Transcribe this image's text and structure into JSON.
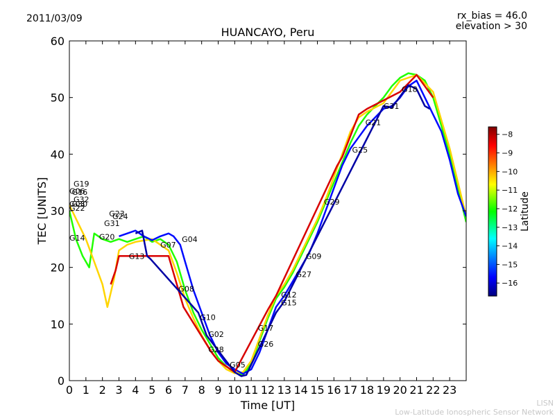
{
  "header": {
    "date": "2011/03/09",
    "rx_bias": "rx_bias = 46.0",
    "elevation": "elevation > 30"
  },
  "watermark": {
    "line1": "LISN",
    "line2": "Low-Latitude Ionospheric Sensor Network"
  },
  "colorbar": {
    "label": "Latitude",
    "ticks": [
      "-8",
      "-9",
      "-10",
      "-11",
      "-12",
      "-13",
      "-14",
      "-15",
      "-16"
    ],
    "range": [
      -16.7,
      -7.6
    ],
    "colormap": [
      "#00007f",
      "#0000ff",
      "#007fff",
      "#00ffff",
      "#00ff00",
      "#7fff00",
      "#ffff00",
      "#ff7f00",
      "#ff0000",
      "#7f0000"
    ]
  },
  "chart_data": {
    "type": "line",
    "title": "HUANCAYO, Peru",
    "xlabel": "Time [UT]",
    "ylabel": "TEC [UNITS]",
    "xlim": [
      0,
      24
    ],
    "ylim": [
      0,
      60
    ],
    "xticks": [
      "0",
      "1",
      "2",
      "3",
      "4",
      "5",
      "6",
      "7",
      "8",
      "9",
      "10",
      "11",
      "12",
      "13",
      "14",
      "15",
      "16",
      "17",
      "18",
      "19",
      "20",
      "21",
      "22",
      "23"
    ],
    "yticks": [
      "0",
      "10",
      "20",
      "30",
      "40",
      "50",
      "60"
    ],
    "series": [
      {
        "name": "main-trend-green",
        "lat": -12.4,
        "points": [
          [
            0,
            30
          ],
          [
            0.4,
            25
          ],
          [
            0.8,
            22
          ],
          [
            1.2,
            20
          ],
          [
            1.5,
            26
          ],
          [
            2,
            25
          ],
          [
            2.5,
            24.5
          ],
          [
            3,
            25
          ],
          [
            3.5,
            24.5
          ],
          [
            4,
            25
          ],
          [
            4.5,
            25.5
          ],
          [
            5,
            24.5
          ],
          [
            5.5,
            25
          ],
          [
            6,
            24
          ],
          [
            6.5,
            21
          ],
          [
            7,
            16
          ],
          [
            7.5,
            12
          ],
          [
            8,
            9
          ],
          [
            8.5,
            6.5
          ],
          [
            9,
            4
          ],
          [
            9.5,
            2.5
          ],
          [
            10,
            1.5
          ],
          [
            10.5,
            1
          ],
          [
            11,
            3
          ],
          [
            11.5,
            7
          ],
          [
            12,
            11
          ],
          [
            12.5,
            14.5
          ],
          [
            13,
            16.5
          ],
          [
            13.5,
            19
          ],
          [
            14,
            22
          ],
          [
            14.5,
            25
          ],
          [
            15,
            28
          ],
          [
            15.5,
            31.5
          ],
          [
            16,
            35
          ],
          [
            16.5,
            38.5
          ],
          [
            17,
            42
          ],
          [
            17.5,
            45
          ],
          [
            18,
            47
          ],
          [
            18.5,
            48.5
          ],
          [
            19,
            50
          ],
          [
            19.5,
            52
          ],
          [
            20,
            53.5
          ],
          [
            20.5,
            54.3
          ],
          [
            21,
            54
          ],
          [
            21.5,
            53
          ],
          [
            22,
            50
          ],
          [
            22.5,
            45
          ],
          [
            23,
            40
          ],
          [
            23.5,
            34
          ],
          [
            24,
            28
          ]
        ]
      },
      {
        "name": "trend-yellow",
        "lat": -10.3,
        "points": [
          [
            0,
            31
          ],
          [
            0.5,
            28
          ],
          [
            1,
            25
          ],
          [
            1.5,
            21
          ],
          [
            2,
            17
          ],
          [
            2.3,
            13
          ],
          [
            2.7,
            18
          ],
          [
            3,
            23
          ],
          [
            3.5,
            24
          ],
          [
            4,
            24.5
          ],
          [
            5,
            25
          ],
          [
            6,
            23
          ],
          [
            6.5,
            19
          ],
          [
            7,
            14.5
          ],
          [
            7.5,
            11
          ],
          [
            8,
            8
          ],
          [
            8.5,
            5.5
          ],
          [
            9,
            3.5
          ],
          [
            9.5,
            2
          ],
          [
            10,
            1.3
          ],
          [
            10.5,
            1.5
          ],
          [
            11,
            3.5
          ],
          [
            11.5,
            7.5
          ],
          [
            12,
            11.5
          ],
          [
            12.5,
            15
          ],
          [
            13,
            17
          ],
          [
            13.5,
            19.5
          ],
          [
            14,
            22.5
          ],
          [
            14.5,
            25.5
          ],
          [
            15,
            28.5
          ],
          [
            15.5,
            32
          ],
          [
            16,
            36
          ],
          [
            16.5,
            40
          ],
          [
            17,
            44
          ],
          [
            17.5,
            46.5
          ],
          [
            18,
            47.5
          ],
          [
            19,
            49
          ],
          [
            20,
            53
          ],
          [
            21,
            54
          ],
          [
            22,
            51
          ],
          [
            23,
            41
          ],
          [
            24,
            29
          ]
        ]
      },
      {
        "name": "trend-blue",
        "lat": -15.6,
        "points": [
          [
            3,
            25.5
          ],
          [
            3.5,
            26
          ],
          [
            4,
            26.5
          ],
          [
            4.5,
            25.5
          ],
          [
            5,
            24.8
          ],
          [
            5.5,
            25.5
          ],
          [
            6,
            26
          ],
          [
            6.3,
            25.5
          ],
          [
            6.7,
            24
          ],
          [
            7,
            21
          ],
          [
            7.5,
            16
          ],
          [
            8,
            12
          ],
          [
            8.5,
            8
          ],
          [
            9,
            5
          ],
          [
            9.5,
            3
          ],
          [
            10,
            2
          ],
          [
            10.5,
            1.2
          ],
          [
            11,
            2
          ],
          [
            11.5,
            5
          ],
          [
            12,
            9
          ],
          [
            12.5,
            13
          ],
          [
            13,
            15
          ],
          [
            13.5,
            17.5
          ],
          [
            14,
            20
          ],
          [
            14.5,
            22.5
          ],
          [
            15,
            26
          ],
          [
            15.5,
            30
          ],
          [
            16,
            34
          ],
          [
            16.5,
            38
          ],
          [
            17,
            41
          ],
          [
            17.5,
            43
          ],
          [
            18,
            45
          ],
          [
            18.5,
            46.5
          ],
          [
            19,
            48
          ],
          [
            19.5,
            48.5
          ],
          [
            20,
            50
          ],
          [
            20.5,
            52
          ],
          [
            21,
            53
          ],
          [
            21.5,
            50
          ],
          [
            22,
            47
          ],
          [
            22.5,
            44
          ],
          [
            23,
            39
          ],
          [
            23.5,
            33
          ],
          [
            24,
            29
          ]
        ]
      },
      {
        "name": "trend-red",
        "lat": -8.3,
        "points": [
          [
            2.5,
            17
          ],
          [
            2.8,
            19.5
          ],
          [
            3,
            22
          ],
          [
            6,
            22
          ],
          [
            6.5,
            17
          ],
          [
            6.9,
            13
          ],
          [
            8.6,
            5
          ],
          [
            9,
            3.5
          ],
          [
            9.5,
            2.5
          ],
          [
            10,
            1.5
          ],
          [
            12,
            12.5
          ],
          [
            12.5,
            15
          ],
          [
            16.2,
            38
          ],
          [
            16.5,
            39.5
          ],
          [
            17.5,
            47
          ],
          [
            18,
            48
          ],
          [
            20,
            51
          ],
          [
            21,
            54
          ],
          [
            21.5,
            52
          ],
          [
            22,
            50
          ]
        ]
      },
      {
        "name": "trend-darkblue",
        "lat": -16.4,
        "points": [
          [
            4,
            26
          ],
          [
            4.4,
            26.5
          ],
          [
            4.7,
            22
          ],
          [
            4.9,
            21.5
          ],
          [
            7.8,
            12
          ],
          [
            8.3,
            8
          ],
          [
            10,
            1.5
          ],
          [
            10.4,
            0.8
          ],
          [
            10.7,
            1
          ],
          [
            12.5,
            12
          ],
          [
            13,
            14
          ],
          [
            19,
            48.5
          ],
          [
            19.5,
            48.2
          ],
          [
            20.5,
            52.2
          ],
          [
            21,
            51.5
          ],
          [
            21.5,
            48.5
          ],
          [
            21.8,
            48
          ]
        ]
      }
    ],
    "satellite_labels": [
      {
        "text": "G19",
        "x": 0.25,
        "y": 34.8
      },
      {
        "text": "G06",
        "x": 0.0,
        "y": 33.5
      },
      {
        "text": "G16",
        "x": 0.15,
        "y": 33.3
      },
      {
        "text": "G32",
        "x": 0.25,
        "y": 32.0
      },
      {
        "text": "G03",
        "x": 0.0,
        "y": 31.2
      },
      {
        "text": "G30",
        "x": 0.15,
        "y": 31.2
      },
      {
        "text": "G22",
        "x": 0.0,
        "y": 30.5
      },
      {
        "text": "G14",
        "x": 0.0,
        "y": 25.2
      },
      {
        "text": "G20",
        "x": 1.8,
        "y": 25.4
      },
      {
        "text": "G23",
        "x": 2.4,
        "y": 29.5
      },
      {
        "text": "G24",
        "x": 2.6,
        "y": 29.0
      },
      {
        "text": "G31",
        "x": 2.1,
        "y": 27.8
      },
      {
        "text": "G13",
        "x": 3.6,
        "y": 22.0
      },
      {
        "text": "G07",
        "x": 5.5,
        "y": 24.0
      },
      {
        "text": "G04",
        "x": 6.8,
        "y": 25.0
      },
      {
        "text": "G08",
        "x": 6.6,
        "y": 16.2
      },
      {
        "text": "G10",
        "x": 7.9,
        "y": 11.2
      },
      {
        "text": "G02",
        "x": 8.4,
        "y": 8.2
      },
      {
        "text": "G28",
        "x": 8.4,
        "y": 5.5
      },
      {
        "text": "G05",
        "x": 9.7,
        "y": 2.8
      },
      {
        "text": "G17",
        "x": 11.4,
        "y": 9.3
      },
      {
        "text": "G26",
        "x": 11.4,
        "y": 6.5
      },
      {
        "text": "G12",
        "x": 12.8,
        "y": 15.2
      },
      {
        "text": "G15",
        "x": 12.8,
        "y": 13.8
      },
      {
        "text": "G27",
        "x": 13.7,
        "y": 18.8
      },
      {
        "text": "G09",
        "x": 14.3,
        "y": 22.0
      },
      {
        "text": "G29",
        "x": 15.4,
        "y": 31.6
      },
      {
        "text": "G25",
        "x": 17.1,
        "y": 40.8
      },
      {
        "text": "G21",
        "x": 17.9,
        "y": 45.6
      },
      {
        "text": "G31",
        "x": 19.0,
        "y": 48.5
      },
      {
        "text": "G18",
        "x": 20.1,
        "y": 51.5
      }
    ]
  }
}
